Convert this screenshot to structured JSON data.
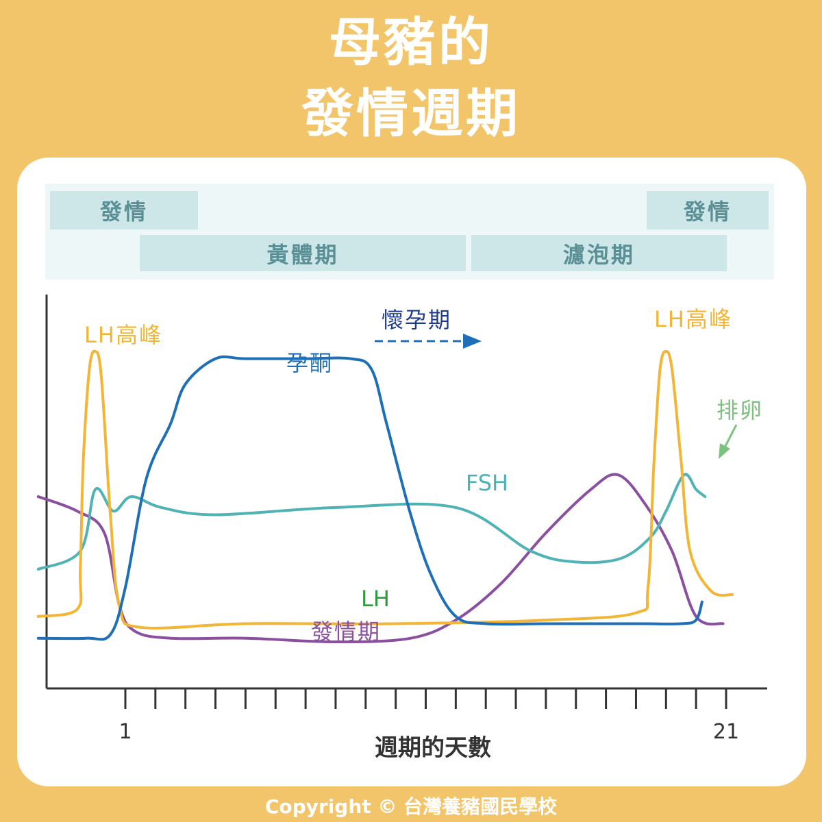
{
  "title": {
    "line1": "母豬的",
    "line2": "發情週期"
  },
  "phases": {
    "estrus_left": "發情",
    "estrus_right": "發情",
    "luteal": "黃體期",
    "follicular": "濾泡期"
  },
  "colors": {
    "background": "#F3C56B",
    "lh": "#F2B535",
    "progesterone": "#1E6FB8",
    "fsh": "#4FB2B5",
    "estrus": "#8B4FA0",
    "pregnancy": "#1E3A8A",
    "ovulation": "#7DC17E",
    "lh_label": "#2E9A3C"
  },
  "chart_data": {
    "type": "line",
    "xlabel": "週期的天數",
    "ylabel": "",
    "xlim": [
      -1.9,
      21.9
    ],
    "ylim": [
      0,
      100
    ],
    "x_ticks_labeled": [
      "1",
      "21"
    ],
    "x_tick_step": 1,
    "series": [
      {
        "name": "LH",
        "color": "#F2B535",
        "points": [
          [
            -1.9,
            17
          ],
          [
            -0.6,
            19
          ],
          [
            -0.5,
            30
          ],
          [
            -0.4,
            60
          ],
          [
            -0.2,
            85
          ],
          [
            0.0,
            90
          ],
          [
            0.2,
            83
          ],
          [
            0.5,
            45
          ],
          [
            0.8,
            20
          ],
          [
            1.5,
            14
          ],
          [
            5,
            15
          ],
          [
            10,
            15
          ],
          [
            15,
            16
          ],
          [
            18,
            18
          ],
          [
            18.4,
            25
          ],
          [
            18.6,
            60
          ],
          [
            18.8,
            85
          ],
          [
            19.0,
            90
          ],
          [
            19.2,
            85
          ],
          [
            19.5,
            60
          ],
          [
            19.8,
            35
          ],
          [
            20.5,
            24
          ],
          [
            21.2,
            23
          ]
        ]
      },
      {
        "name": "孕酮",
        "color": "#1E6FB8",
        "points": [
          [
            -1.9,
            11
          ],
          [
            -0.3,
            11
          ],
          [
            0.5,
            12
          ],
          [
            1,
            25
          ],
          [
            1.7,
            55
          ],
          [
            2.5,
            70
          ],
          [
            3,
            81
          ],
          [
            4,
            88
          ],
          [
            5,
            88
          ],
          [
            7,
            88
          ],
          [
            8.5,
            88
          ],
          [
            9.2,
            85
          ],
          [
            9.7,
            70
          ],
          [
            10.5,
            45
          ],
          [
            11.2,
            28
          ],
          [
            12,
            17
          ],
          [
            13,
            15
          ],
          [
            15,
            15
          ],
          [
            17,
            15
          ],
          [
            18.3,
            15
          ],
          [
            19.5,
            15
          ],
          [
            20.0,
            16
          ],
          [
            20.2,
            21
          ]
        ]
      },
      {
        "name": "FSH",
        "color": "#4FB2B5",
        "points": [
          [
            -1.9,
            30
          ],
          [
            -0.5,
            35
          ],
          [
            0,
            52
          ],
          [
            0.6,
            46
          ],
          [
            1.2,
            50
          ],
          [
            2.2,
            47
          ],
          [
            4,
            45
          ],
          [
            8,
            47
          ],
          [
            12,
            47
          ],
          [
            14.5,
            35
          ],
          [
            16,
            32
          ],
          [
            17.5,
            33
          ],
          [
            18.5,
            39
          ],
          [
            19.0,
            46
          ],
          [
            19.6,
            56
          ],
          [
            20.0,
            52
          ],
          [
            20.3,
            50
          ]
        ]
      },
      {
        "name": "發情期",
        "color": "#8B4FA0",
        "points": [
          [
            -1.9,
            50
          ],
          [
            -0.6,
            46
          ],
          [
            0.3,
            40
          ],
          [
            0.8,
            20
          ],
          [
            1.3,
            13
          ],
          [
            2.5,
            11
          ],
          [
            5,
            11
          ],
          [
            8,
            10
          ],
          [
            10.5,
            11
          ],
          [
            12,
            16
          ],
          [
            13.5,
            26
          ],
          [
            15,
            40
          ],
          [
            16.5,
            52
          ],
          [
            17.4,
            56
          ],
          [
            18.3,
            48
          ],
          [
            19.2,
            35
          ],
          [
            20.0,
            17
          ],
          [
            20.9,
            15
          ]
        ]
      }
    ],
    "annotations": [
      "LH高峰",
      "LH高峰",
      "懷孕期",
      "孕酮",
      "排卵",
      "FSH",
      "LH",
      "發情期"
    ]
  },
  "copyright": "Copyright © 台灣養豬國民學校"
}
